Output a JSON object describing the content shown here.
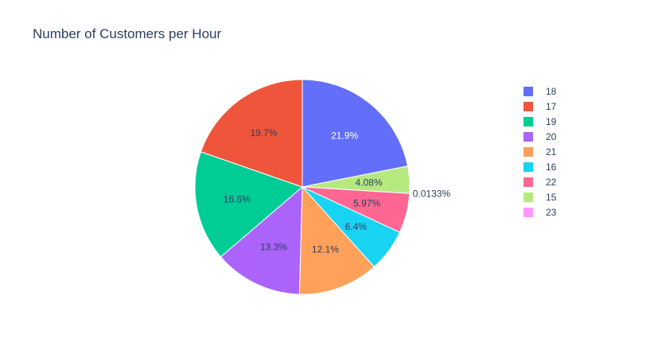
{
  "chart_data": {
    "type": "pie",
    "title": "Number of Customers per Hour",
    "direction": "clockwise",
    "start_angle_deg": 90,
    "legend_position": "right",
    "slices": [
      {
        "label": "18",
        "percent": 21.9,
        "text": "21.9%",
        "color": "#636efa",
        "label_color": "#ffffff",
        "label_outside": false
      },
      {
        "label": "15",
        "percent": 4.08,
        "text": "4.08%",
        "color": "#b6e880",
        "label_color": "#2a3f5f",
        "label_outside": false
      },
      {
        "label": "23",
        "percent": 0.0133,
        "text": "0.0133%",
        "color": "#ff97ff",
        "label_color": "#2a3f5f",
        "label_outside": true
      },
      {
        "label": "22",
        "percent": 5.97,
        "text": "5.97%",
        "color": "#ff6692",
        "label_color": "#2a3f5f",
        "label_outside": false
      },
      {
        "label": "16",
        "percent": 6.4,
        "text": "6.4%",
        "color": "#19d3f3",
        "label_color": "#2a3f5f",
        "label_outside": false
      },
      {
        "label": "21",
        "percent": 12.1,
        "text": "12.1%",
        "color": "#ffa15a",
        "label_color": "#2a3f5f",
        "label_outside": false
      },
      {
        "label": "20",
        "percent": 13.3,
        "text": "13.3%",
        "color": "#ab63fa",
        "label_color": "#2a3f5f",
        "label_outside": false
      },
      {
        "label": "19",
        "percent": 16.6,
        "text": "16.6%",
        "color": "#00cc96",
        "label_color": "#2a3f5f",
        "label_outside": false
      },
      {
        "label": "17",
        "percent": 19.7,
        "text": "19.7%",
        "color": "#ef553b",
        "label_color": "#2a3f5f",
        "label_outside": false
      }
    ],
    "legend": [
      {
        "label": "18",
        "color": "#636efa"
      },
      {
        "label": "17",
        "color": "#ef553b"
      },
      {
        "label": "19",
        "color": "#00cc96"
      },
      {
        "label": "20",
        "color": "#ab63fa"
      },
      {
        "label": "21",
        "color": "#ffa15a"
      },
      {
        "label": "16",
        "color": "#19d3f3"
      },
      {
        "label": "22",
        "color": "#ff6692"
      },
      {
        "label": "15",
        "color": "#b6e880"
      },
      {
        "label": "23",
        "color": "#ff97ff"
      }
    ]
  }
}
